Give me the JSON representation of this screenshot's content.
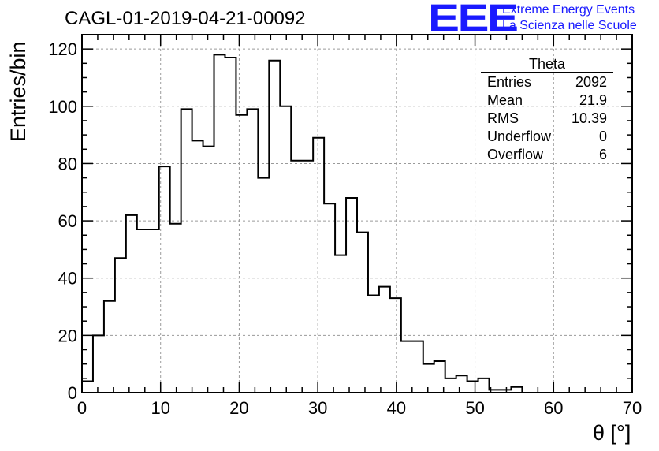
{
  "title": "CAGL-01-2019-04-21-00092",
  "logo": {
    "mark": "EEE",
    "line1": "Extreme Energy Events",
    "line2": "La Scienza nelle Scuole",
    "color": "#1a1aff"
  },
  "stats": {
    "title": "Theta",
    "rows": [
      {
        "label": "Entries",
        "value": "2092"
      },
      {
        "label": "Mean",
        "value": "21.9"
      },
      {
        "label": "RMS",
        "value": "10.39"
      },
      {
        "label": "Underflow",
        "value": "0"
      },
      {
        "label": "Overflow",
        "value": "6"
      }
    ]
  },
  "chart_data": {
    "type": "bar",
    "style": "step-histogram",
    "title": "CAGL-01-2019-04-21-00092",
    "xlabel": "θ [°]",
    "ylabel": "Entries/bin",
    "xlim": [
      0,
      70
    ],
    "ylim": [
      0,
      125
    ],
    "grid": true,
    "bin_width": 1.4,
    "bin_edges_start": 0,
    "values": [
      4,
      20,
      32,
      47,
      62,
      57,
      57,
      79,
      59,
      99,
      88,
      86,
      118,
      117,
      97,
      99,
      75,
      116,
      100,
      81,
      81,
      89,
      66,
      48,
      68,
      56,
      34,
      37,
      33,
      18,
      18,
      10,
      11,
      5,
      6,
      4,
      5,
      1,
      1,
      2,
      0,
      0,
      0,
      0,
      0,
      0,
      0,
      0,
      0,
      0
    ],
    "xticks": [
      0,
      10,
      20,
      30,
      40,
      50,
      60,
      70
    ],
    "yticks": [
      0,
      20,
      40,
      60,
      80,
      100,
      120
    ]
  }
}
